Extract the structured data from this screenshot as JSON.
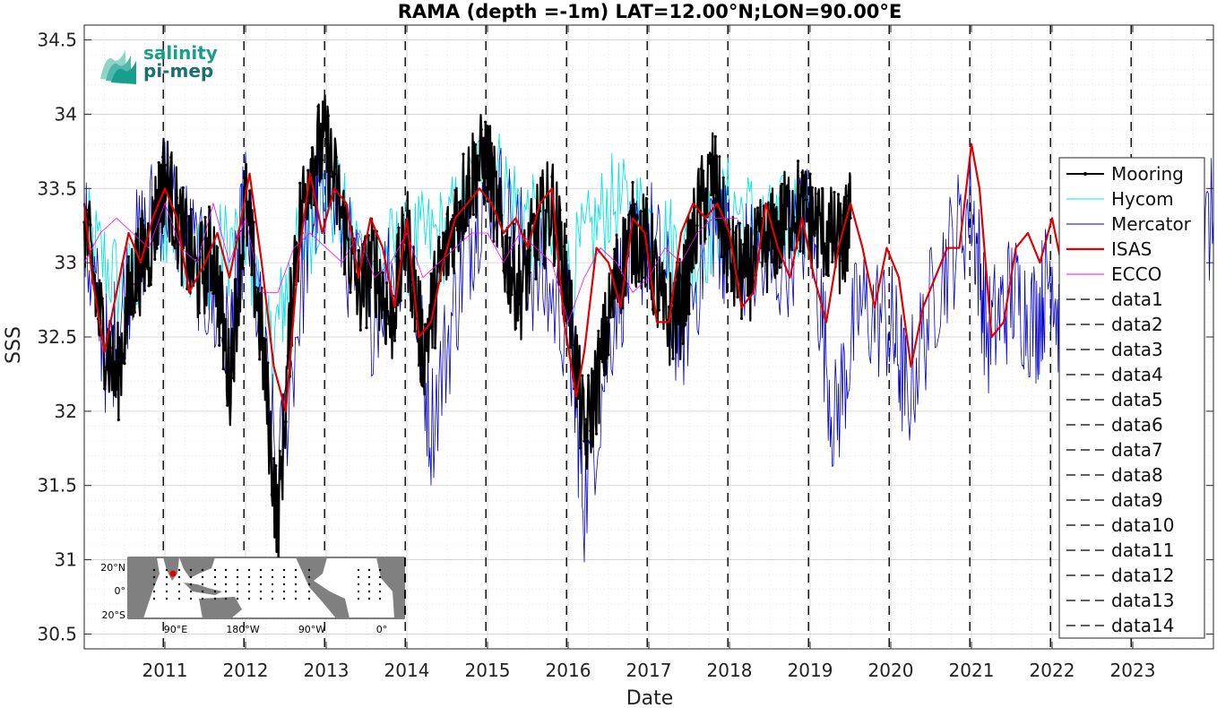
{
  "chart_data": {
    "type": "line",
    "title": "RAMA (depth =-1m) LAT=12.00°N;LON=90.00°E",
    "xlabel": "Date",
    "ylabel": "SSS",
    "xlim": [
      2010.0,
      2024.0
    ],
    "ylim": [
      30.4,
      34.6
    ],
    "x_ticks": [
      2011,
      2012,
      2013,
      2014,
      2015,
      2016,
      2017,
      2018,
      2019,
      2020,
      2021,
      2022,
      2023
    ],
    "x_tick_labels": [
      "2011",
      "2012",
      "2013",
      "2014",
      "2015",
      "2016",
      "2017",
      "2018",
      "2019",
      "2020",
      "2021",
      "2022",
      "2023"
    ],
    "y_ticks": [
      30.5,
      31,
      31.5,
      32,
      32.5,
      33,
      33.5,
      34,
      34.5
    ],
    "y_tick_labels": [
      "30.5",
      "31",
      "31.5",
      "32",
      "32.5",
      "33",
      "33.5",
      "34",
      "34.5"
    ],
    "grid": true,
    "minor_grid": true,
    "legend_position": "right",
    "vertical_lines_x": [
      2010.98,
      2011.98,
      2012.98,
      2013.98,
      2014.98,
      2015.98,
      2016.98,
      2017.98,
      2018.98,
      2019.98,
      2020.98,
      2021.98,
      2022.98
    ],
    "series": [
      {
        "name": "Mooring",
        "color": "#000000",
        "style": "solid-dots",
        "noise": 0.35,
        "x": [
          2010.0,
          2010.2,
          2010.4,
          2010.6,
          2010.8,
          2011.0,
          2011.2,
          2011.4,
          2011.6,
          2011.8,
          2012.0,
          2012.2,
          2012.4,
          2012.6,
          2012.8,
          2013.0,
          2013.2,
          2013.4,
          2013.6,
          2013.8,
          2014.0,
          2014.2,
          2014.4,
          2014.6,
          2014.8,
          2015.0,
          2015.2,
          2015.4,
          2015.6,
          2015.8,
          2016.0,
          2016.2,
          2016.4,
          2016.6,
          2016.8,
          2017.0,
          2017.2,
          2017.4,
          2017.6,
          2017.8,
          2018.0,
          2018.2,
          2018.4,
          2018.6,
          2018.8,
          2019.0,
          2019.2,
          2019.4,
          2019.5
        ],
        "y": [
          33.3,
          32.6,
          32.2,
          32.9,
          33.1,
          33.6,
          33.2,
          32.9,
          33.1,
          32.2,
          33.4,
          32.5,
          31.2,
          33.0,
          33.7,
          33.8,
          33.3,
          32.8,
          33.0,
          32.6,
          33.2,
          32.4,
          32.9,
          33.3,
          33.6,
          33.7,
          33.1,
          32.8,
          33.2,
          33.4,
          32.8,
          31.8,
          32.3,
          32.9,
          33.2,
          33.1,
          32.6,
          32.7,
          33.3,
          33.6,
          33.0,
          32.9,
          33.1,
          33.2,
          33.4,
          33.3,
          33.2,
          33.1,
          33.3
        ]
      },
      {
        "name": "Hycom",
        "color": "#00e5e5",
        "style": "solid",
        "noise": 0.35,
        "x": [
          2010.0,
          2010.5,
          2011.0,
          2011.5,
          2012.0,
          2012.3,
          2012.6,
          2013.0,
          2013.5,
          2014.0,
          2014.5,
          2015.0,
          2015.5,
          2016.0,
          2016.5,
          2017.0,
          2017.5,
          2018.0,
          2018.5,
          2019.0
        ],
        "y": [
          33.2,
          32.8,
          33.3,
          33.0,
          33.2,
          32.4,
          33.0,
          33.5,
          33.0,
          33.1,
          33.2,
          33.7,
          33.3,
          32.9,
          33.4,
          33.3,
          33.0,
          33.4,
          33.2,
          33.4
        ]
      },
      {
        "name": "Mercator",
        "color": "#0000cc",
        "style": "solid",
        "noise": 0.45,
        "x": [
          2010.0,
          2010.3,
          2010.6,
          2011.0,
          2011.4,
          2011.8,
          2012.0,
          2012.4,
          2012.8,
          2013.0,
          2013.5,
          2014.0,
          2014.3,
          2014.7,
          2015.0,
          2015.5,
          2016.0,
          2016.2,
          2016.6,
          2017.0,
          2017.4,
          2017.8,
          2018.0,
          2018.5,
          2019.0,
          2019.3,
          2019.6,
          2020.0,
          2020.2,
          2020.6,
          2021.0,
          2021.2,
          2021.5,
          2021.8,
          2022.0,
          2022.2,
          2022.5,
          2022.8,
          2023.0,
          2023.3,
          2023.7,
          2024.0
        ],
        "y": [
          33.2,
          32.3,
          33.0,
          33.5,
          33.0,
          32.4,
          33.4,
          31.5,
          33.3,
          33.6,
          32.6,
          33.2,
          31.9,
          33.0,
          33.6,
          33.0,
          32.6,
          31.4,
          32.8,
          33.2,
          32.5,
          33.3,
          33.1,
          32.9,
          33.3,
          31.9,
          32.7,
          32.6,
          32.1,
          32.9,
          33.4,
          32.5,
          32.8,
          32.6,
          33.0,
          31.9,
          32.8,
          32.4,
          32.6,
          32.2,
          32.9,
          33.3
        ]
      },
      {
        "name": "ISAS",
        "color": "#e00000",
        "style": "thick",
        "noise": 0,
        "x": [
          2010.0,
          2010.1,
          2010.25,
          2010.4,
          2010.55,
          2010.7,
          2010.85,
          2011.0,
          2011.15,
          2011.3,
          2011.5,
          2011.65,
          2011.8,
          2011.95,
          2012.05,
          2012.2,
          2012.35,
          2012.5,
          2012.65,
          2012.8,
          2012.95,
          2013.1,
          2013.25,
          2013.4,
          2013.55,
          2013.7,
          2013.85,
          2014.0,
          2014.15,
          2014.3,
          2014.45,
          2014.6,
          2014.75,
          2014.9,
          2015.05,
          2015.2,
          2015.35,
          2015.5,
          2015.65,
          2015.8,
          2015.95,
          2016.1,
          2016.2,
          2016.35,
          2016.5,
          2016.65,
          2016.8,
          2016.95,
          2017.1,
          2017.25,
          2017.4,
          2017.55,
          2017.7,
          2017.85,
          2018.0,
          2018.15,
          2018.3,
          2018.45,
          2018.6,
          2018.75,
          2018.9,
          2019.05,
          2019.2,
          2019.35,
          2019.5,
          2019.65,
          2019.8,
          2019.95,
          2020.1,
          2020.25,
          2020.4,
          2020.55,
          2020.7,
          2020.85,
          2021.0,
          2021.1,
          2021.25,
          2021.4,
          2021.55,
          2021.7,
          2021.85,
          2022.0,
          2022.15,
          2022.3,
          2022.45,
          2022.6
        ],
        "y": [
          33.4,
          32.9,
          32.4,
          32.8,
          33.2,
          33.0,
          33.3,
          33.5,
          33.3,
          32.8,
          33.0,
          33.2,
          32.9,
          33.3,
          33.6,
          33.0,
          32.3,
          32.0,
          33.0,
          33.6,
          33.2,
          33.5,
          33.4,
          32.9,
          33.3,
          33.1,
          32.7,
          33.3,
          32.5,
          32.6,
          33.0,
          33.3,
          33.4,
          33.5,
          33.4,
          33.2,
          33.3,
          33.1,
          33.4,
          33.5,
          32.6,
          32.1,
          32.4,
          33.1,
          33.0,
          32.7,
          33.3,
          33.2,
          32.6,
          32.6,
          33.2,
          33.4,
          33.3,
          33.4,
          33.2,
          32.7,
          32.8,
          33.4,
          33.1,
          32.9,
          33.3,
          32.9,
          32.6,
          33.1,
          33.4,
          33.1,
          32.7,
          33.1,
          32.9,
          32.3,
          32.7,
          32.9,
          33.1,
          33.1,
          33.8,
          33.5,
          32.5,
          32.6,
          33.1,
          33.2,
          33.0,
          33.3,
          32.9,
          32.4,
          32.6,
          32.8
        ]
      },
      {
        "name": "ECCO",
        "color": "#ff00ff",
        "style": "solid",
        "noise": 0,
        "x": [
          2010.0,
          2010.2,
          2010.4,
          2010.6,
          2010.8,
          2011.0,
          2011.2,
          2011.4,
          2011.6,
          2011.8,
          2012.0,
          2012.2,
          2012.4,
          2012.6,
          2012.8,
          2013.0,
          2013.2,
          2013.4,
          2013.6,
          2013.8,
          2014.0,
          2014.2,
          2014.4,
          2014.6,
          2014.8,
          2015.0,
          2015.2,
          2015.4,
          2015.6,
          2015.8,
          2016.0,
          2016.2,
          2016.4,
          2016.6,
          2016.8,
          2017.0,
          2017.2,
          2017.4,
          2017.6,
          2017.8,
          2018.0,
          2018.1
        ],
        "y": [
          33.0,
          33.2,
          33.3,
          33.2,
          33.1,
          33.4,
          33.1,
          33.0,
          33.4,
          33.0,
          33.3,
          32.8,
          32.8,
          33.1,
          33.2,
          33.1,
          33.0,
          33.2,
          32.9,
          33.0,
          33.2,
          32.9,
          33.0,
          33.1,
          33.2,
          33.2,
          33.0,
          33.2,
          33.1,
          33.0,
          32.6,
          32.9,
          33.1,
          33.0,
          32.8,
          32.9,
          33.1,
          33.0,
          33.2,
          33.3,
          33.3,
          33.3
        ]
      }
    ],
    "legend_extra": [
      "data1",
      "data2",
      "data3",
      "data4",
      "data5",
      "data6",
      "data7",
      "data8",
      "data9",
      "data10",
      "data11",
      "data12",
      "data13",
      "data14"
    ]
  },
  "logo": {
    "line1": "salinity",
    "line2": "pi-mep",
    "color": "#1a9e8c"
  },
  "inset_map": {
    "y_tick_labels": [
      "20°N",
      "0°",
      "20°S"
    ],
    "x_tick_labels": [
      "90°E",
      "180°W",
      "90°W",
      "0°"
    ],
    "marker_color": "#e00000",
    "land_color": "#808080",
    "ocean_color": "#ffffff"
  }
}
